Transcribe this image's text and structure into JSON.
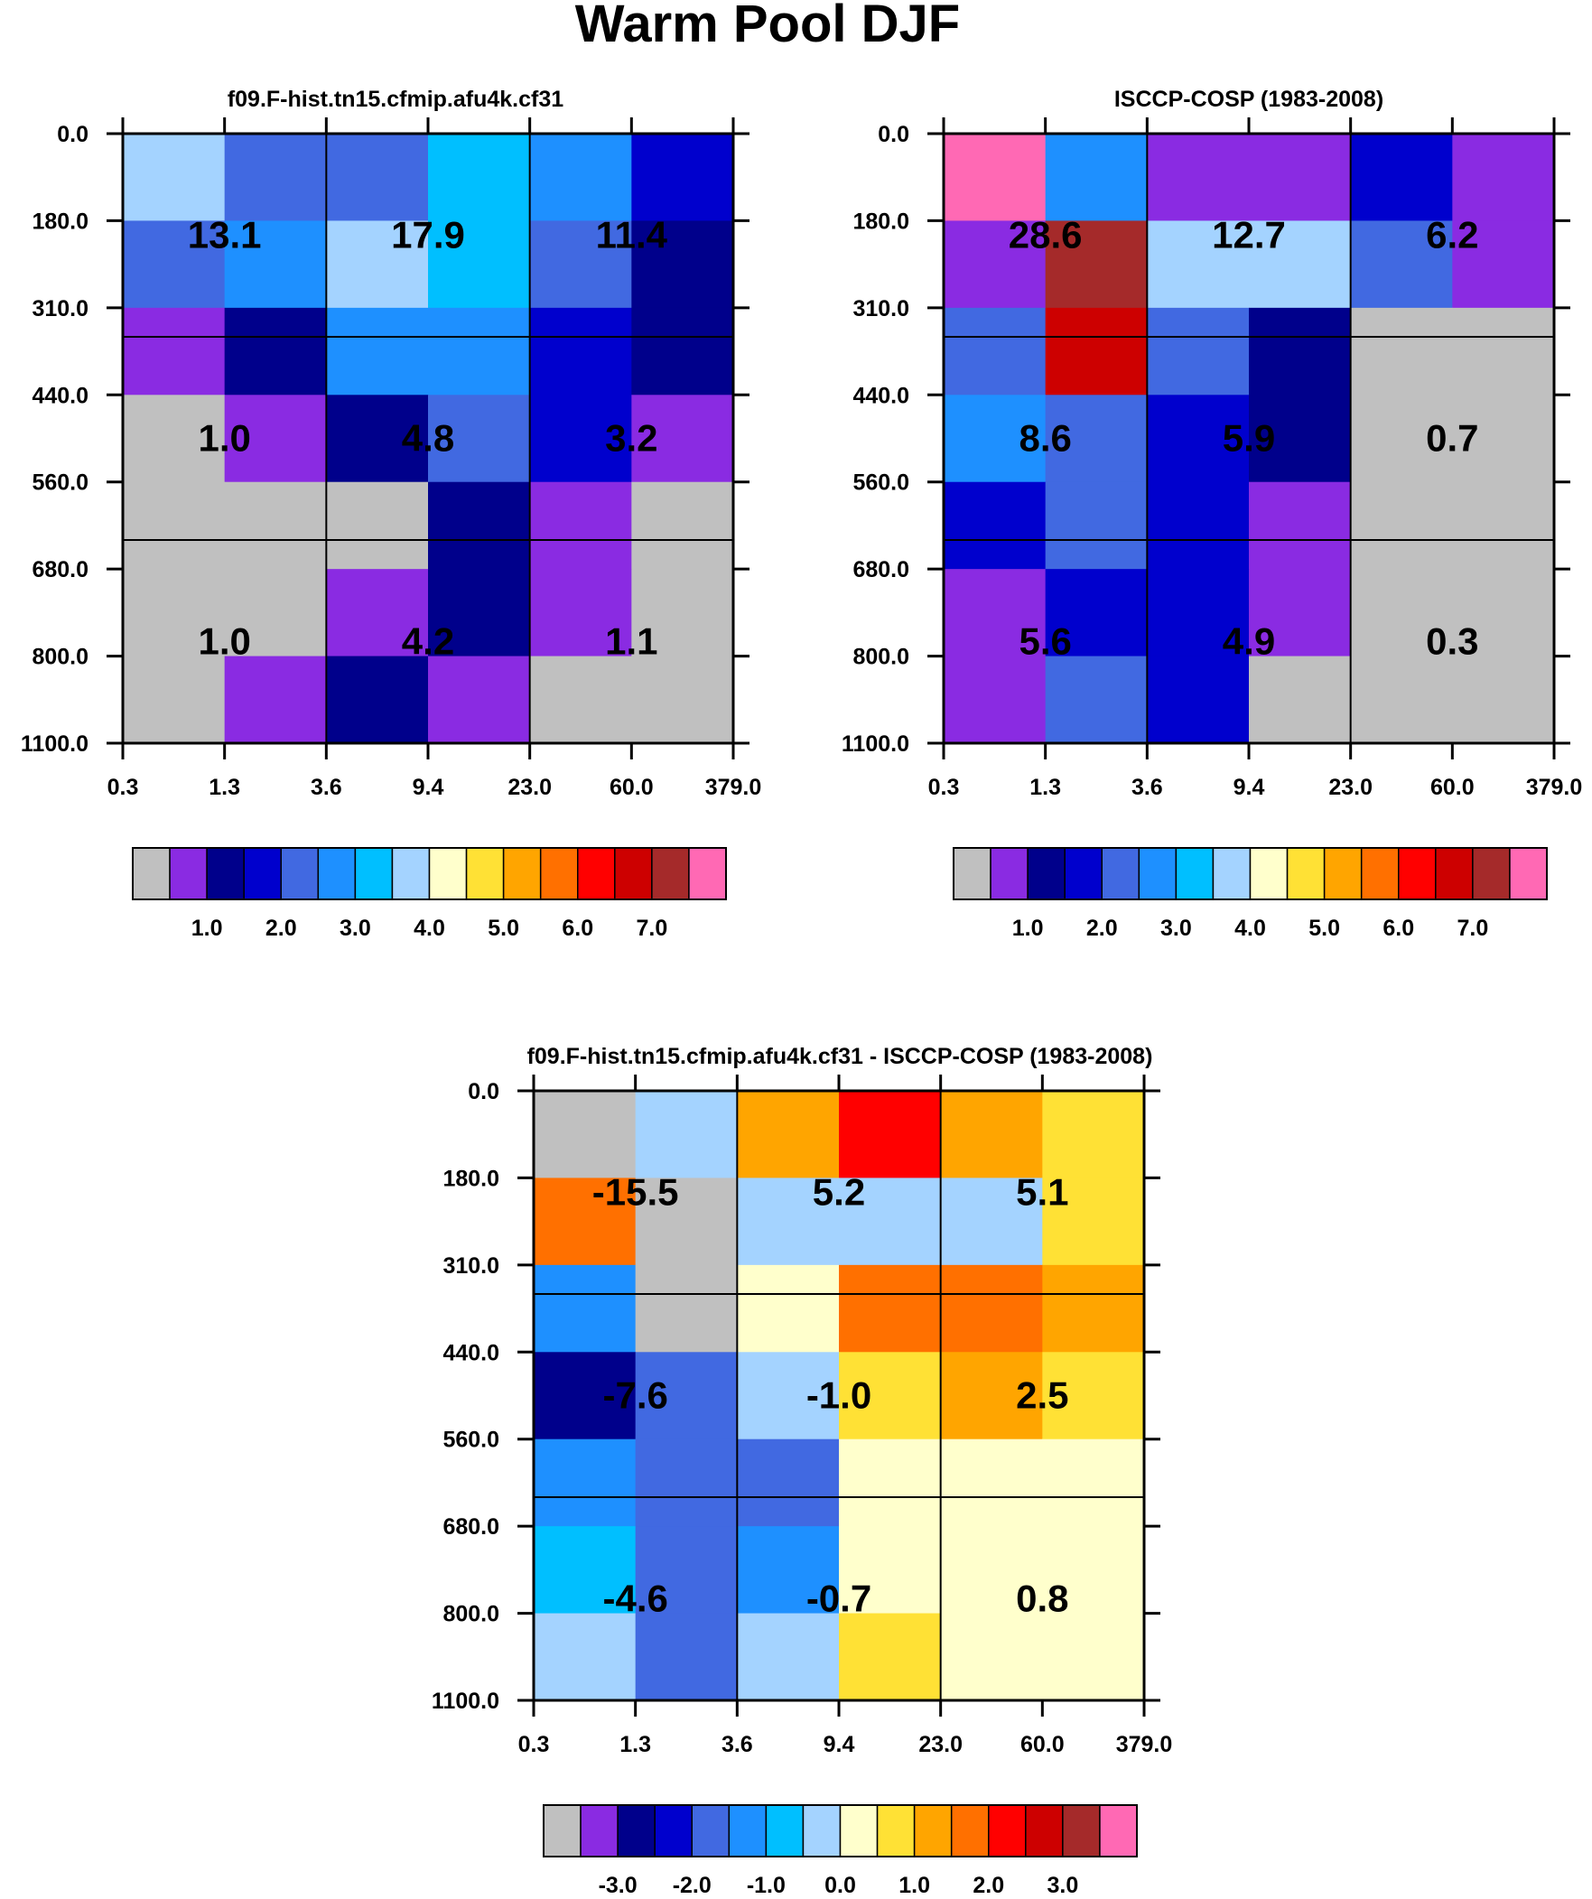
{
  "title": "Warm Pool DJF",
  "colors": {
    "palette": [
      "#c0c0c0",
      "#8a2be2",
      "#00008b",
      "#0000cd",
      "#4169e1",
      "#1e90ff",
      "#00bfff",
      "#a4d3ff",
      "#ffffcc",
      "#ffe135",
      "#ffa500",
      "#ff7000",
      "#ff0000",
      "#cd0000",
      "#a52a2a",
      "#ff69b4"
    ]
  },
  "chart_data": [
    {
      "type": "heatmap",
      "title": "f09.F-hist.tn15.cfmip.afu4k.cf31",
      "x_tick_labels": [
        "0.3",
        "1.3",
        "3.6",
        "9.4",
        "23.0",
        "60.0",
        "379.0"
      ],
      "y_tick_labels": [
        "0.0",
        "180.0",
        "310.0",
        "440.0",
        "560.0",
        "680.0",
        "800.0",
        "1100.0"
      ],
      "cell_color_index": [
        [
          7,
          4,
          4,
          6,
          5,
          3
        ],
        [
          4,
          5,
          7,
          6,
          4,
          2
        ],
        [
          1,
          2,
          5,
          5,
          3,
          2
        ],
        [
          0,
          1,
          2,
          4,
          3,
          1
        ],
        [
          0,
          0,
          0,
          2,
          1,
          0
        ],
        [
          0,
          0,
          1,
          2,
          1,
          0
        ],
        [
          0,
          1,
          2,
          1,
          0,
          0
        ]
      ],
      "box_values": [
        [
          "13.1",
          "17.9",
          "11.4"
        ],
        [
          "1.0",
          "4.8",
          "3.2"
        ],
        [
          "1.0",
          "4.2",
          "1.1"
        ]
      ],
      "colorbar": {
        "labels": [
          "1.0",
          "2.0",
          "3.0",
          "4.0",
          "5.0",
          "6.0",
          "7.0"
        ]
      }
    },
    {
      "type": "heatmap",
      "title": "ISCCP-COSP (1983-2008)",
      "x_tick_labels": [
        "0.3",
        "1.3",
        "3.6",
        "9.4",
        "23.0",
        "60.0",
        "379.0"
      ],
      "y_tick_labels": [
        "0.0",
        "180.0",
        "310.0",
        "440.0",
        "560.0",
        "680.0",
        "800.0",
        "1100.0"
      ],
      "cell_color_index": [
        [
          15,
          5,
          1,
          1,
          3,
          1
        ],
        [
          1,
          14,
          7,
          7,
          4,
          1
        ],
        [
          4,
          13,
          4,
          2,
          0,
          0
        ],
        [
          5,
          4,
          3,
          2,
          0,
          0
        ],
        [
          3,
          4,
          3,
          1,
          0,
          0
        ],
        [
          1,
          3,
          3,
          1,
          0,
          0
        ],
        [
          1,
          4,
          3,
          0,
          0,
          0
        ]
      ],
      "box_values": [
        [
          "28.6",
          "12.7",
          "6.2"
        ],
        [
          "8.6",
          "5.9",
          "0.7"
        ],
        [
          "5.6",
          "4.9",
          "0.3"
        ]
      ],
      "colorbar": {
        "labels": [
          "1.0",
          "2.0",
          "3.0",
          "4.0",
          "5.0",
          "6.0",
          "7.0"
        ]
      }
    },
    {
      "type": "heatmap",
      "title": "f09.F-hist.tn15.cfmip.afu4k.cf31 - ISCCP-COSP (1983-2008)",
      "x_tick_labels": [
        "0.3",
        "1.3",
        "3.6",
        "9.4",
        "23.0",
        "60.0",
        "379.0"
      ],
      "y_tick_labels": [
        "0.0",
        "180.0",
        "310.0",
        "440.0",
        "560.0",
        "680.0",
        "800.0",
        "1100.0"
      ],
      "cell_color_index": [
        [
          0,
          7,
          10,
          12,
          10,
          9
        ],
        [
          11,
          0,
          7,
          7,
          7,
          9
        ],
        [
          5,
          0,
          8,
          11,
          11,
          10
        ],
        [
          2,
          4,
          7,
          9,
          10,
          9
        ],
        [
          5,
          4,
          4,
          8,
          8,
          8
        ],
        [
          6,
          4,
          5,
          8,
          8,
          8
        ],
        [
          7,
          4,
          7,
          9,
          8,
          8
        ]
      ],
      "box_values": [
        [
          "-15.5",
          "5.2",
          "5.1"
        ],
        [
          "-7.6",
          "-1.0",
          "2.5"
        ],
        [
          "-4.6",
          "-0.7",
          "0.8"
        ]
      ],
      "colorbar": {
        "labels": [
          "-3.0",
          "-2.0",
          "-1.0",
          "0.0",
          "1.0",
          "2.0",
          "3.0"
        ]
      }
    }
  ]
}
